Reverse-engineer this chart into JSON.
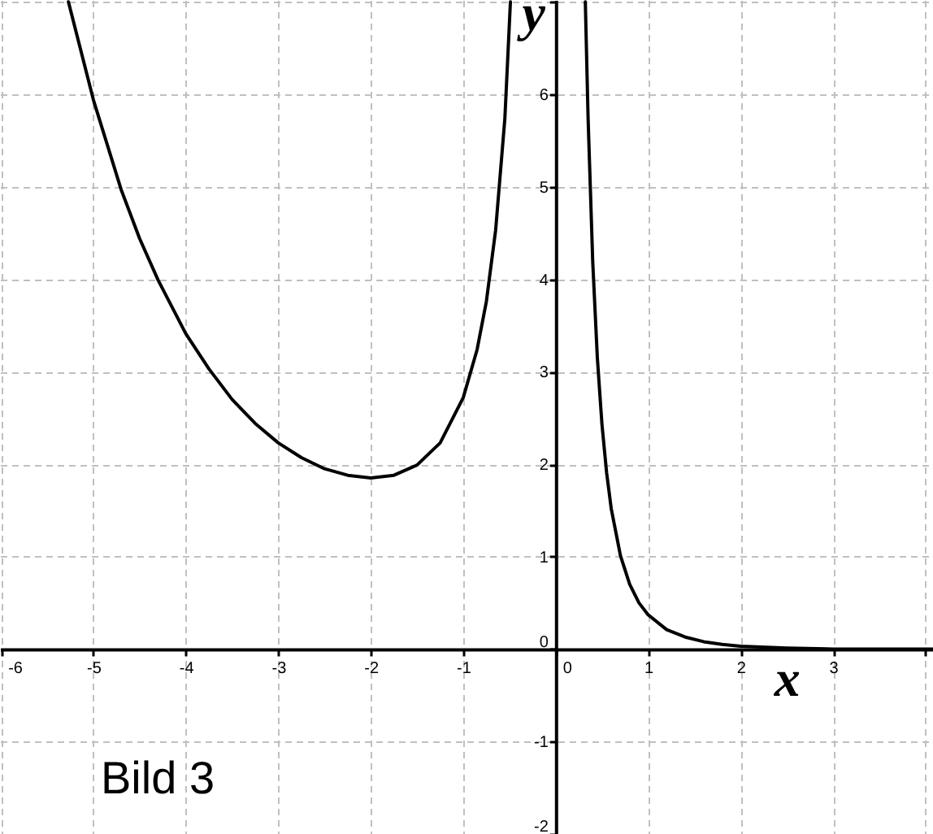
{
  "chart_data": {
    "type": "line",
    "xlabel": "x",
    "ylabel": "y",
    "annotations": [
      "Bild 3"
    ],
    "color": "#000000",
    "grid": true,
    "x": [
      -5.27,
      -5.0,
      -4.7,
      -4.5,
      -4.3,
      -4.0,
      -3.75,
      -3.5,
      -3.25,
      -3.0,
      -2.75,
      -2.5,
      -2.25,
      -2.0,
      -1.75,
      -1.5,
      -1.25,
      -1.0,
      -0.85,
      -0.75,
      -0.65,
      -0.55,
      -0.49,
      0,
      0.32,
      0.35,
      0.4,
      0.45,
      0.5,
      0.55,
      0.6,
      0.7,
      0.8,
      0.9,
      1.0,
      1.2,
      1.4,
      1.6,
      1.8,
      2.0,
      2.5,
      3.0,
      4.08
    ],
    "values": [
      7.0,
      5.94,
      4.97,
      4.44,
      3.99,
      3.41,
      3.03,
      2.7,
      2.44,
      2.23,
      2.07,
      1.95,
      1.88,
      1.85,
      1.88,
      1.99,
      2.23,
      2.72,
      3.24,
      3.76,
      4.53,
      5.74,
      7.0,
      null,
      7.0,
      5.74,
      4.19,
      3.15,
      2.43,
      1.91,
      1.52,
      1.01,
      0.7,
      0.5,
      0.37,
      0.21,
      0.13,
      0.08,
      0.05,
      0.03,
      0.01,
      0.0,
      0.0
    ],
    "xlim": [
      -6.01,
      4.08
    ],
    "ylim": [
      -2,
      7.02
    ],
    "xticks": [
      -6,
      -5,
      -4,
      -3,
      -2,
      -1,
      0,
      1,
      2,
      3,
      {
        "value": 4,
        "label": null
      }
    ],
    "yticks": [
      -2,
      -1,
      0,
      1,
      2,
      3,
      4,
      5,
      6,
      {
        "value": 7,
        "label": null
      }
    ]
  }
}
